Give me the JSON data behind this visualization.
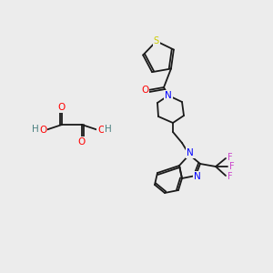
{
  "background_color": "#ececec",
  "fig_size": [
    3.0,
    3.0
  ],
  "dpi": 100,
  "atom_colors": {
    "S": "#cccc00",
    "N": "#0000ff",
    "O": "#ff0000",
    "F": "#cc44cc",
    "H_acid": "#4a8080",
    "C": "#1a1a1a"
  },
  "bond_color": "#1a1a1a",
  "bond_width": 1.3
}
